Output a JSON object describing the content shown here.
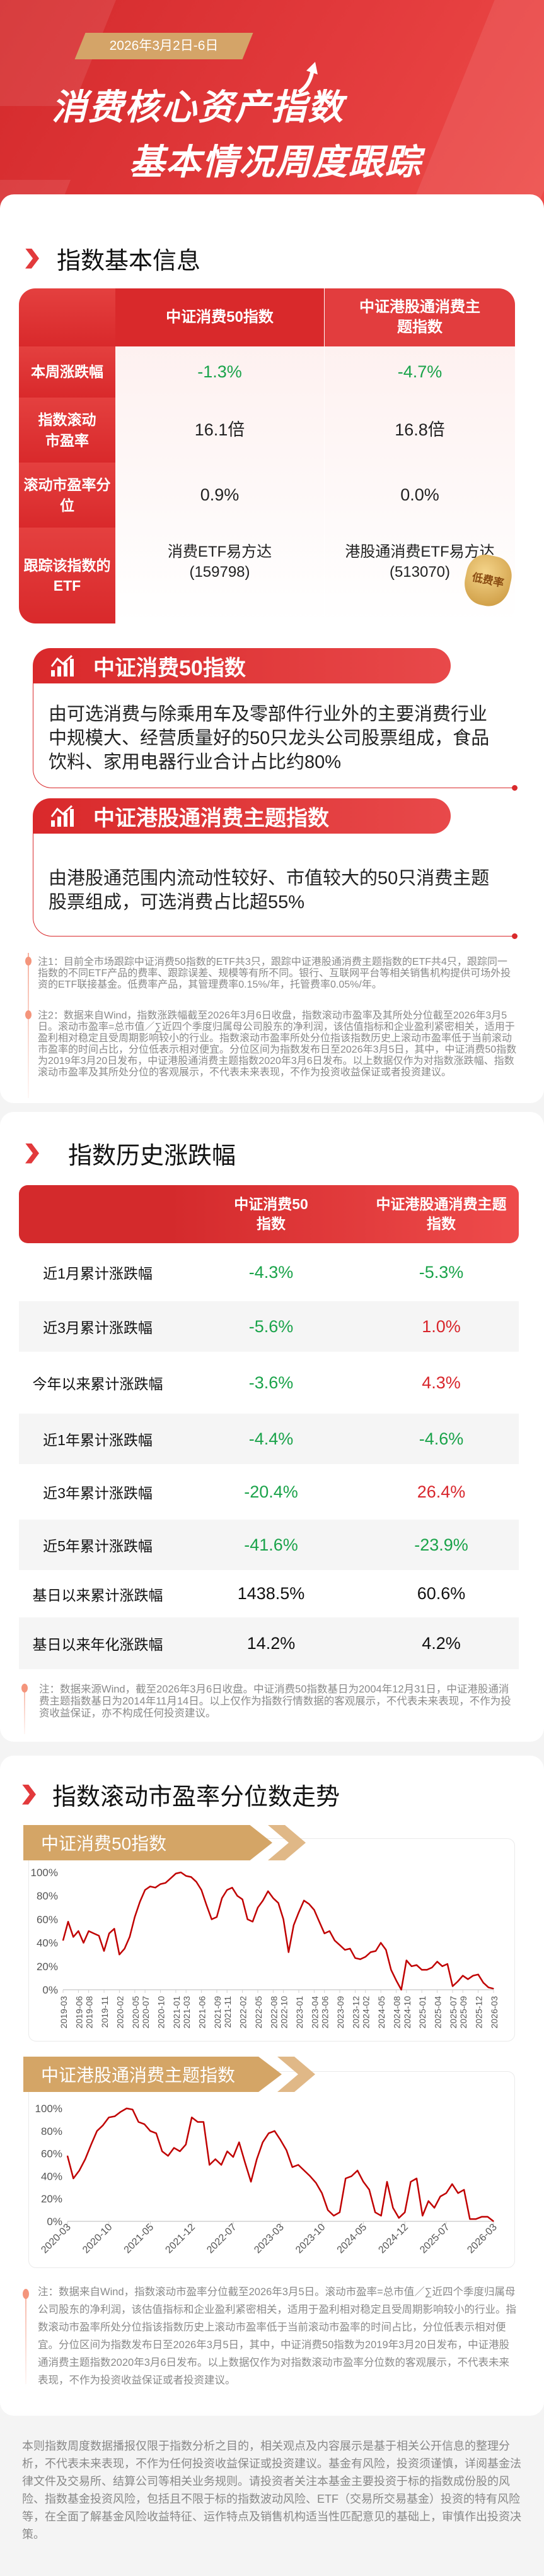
{
  "hero": {
    "date": "2026年3月2日-6日",
    "title_line1": "消费核心资产指数",
    "title_line2": "基本情况周度跟踪"
  },
  "basic_info": {
    "heading": "指数基本信息",
    "columns": [
      "中证消费50指数",
      "中证港股通消费主题指数"
    ],
    "rows": [
      {
        "label": "本周涨跌幅",
        "values": [
          "-1.3%",
          "-4.7%"
        ],
        "colors": [
          "#1aa34a",
          "#1aa34a"
        ]
      },
      {
        "label": "指数滚动市盈率",
        "values": [
          "16.1倍",
          "16.8倍"
        ]
      },
      {
        "label": "滚动市盈率分位",
        "values": [
          "0.9%",
          "0.0%"
        ]
      },
      {
        "label": "跟踪该指数的ETF",
        "values": [
          "消费ETF易方达\n(159798)",
          "港股通消费ETF易方达\n(513070)"
        ]
      }
    ],
    "badge": "低费率",
    "index_intros": [
      {
        "title": "中证消费50指数",
        "icon": "chart-growth-icon",
        "text": "由可选消费与除乘用车及零部件行业外的主要消费行业中规模大、经营质量好的50只龙头公司股票组成，食品饮料、家用电器行业合计占比约80%"
      },
      {
        "title": "中证港股通消费主题指数",
        "icon": "chart-growth-icon",
        "text": "由港股通范围内流动性较好、市值较大的50只消费主题股票组成，可选消费占比超55%"
      }
    ],
    "notes": [
      "注1：目前全市场跟踪中证消费50指数的ETF共3只，跟踪中证港股通消费主题指数的ETF共4只，跟踪同一指数的不同ETF产品的费率、跟踪误差、规模等有所不同。银行、互联网平台等相关销售机构提供可场外投资的ETF联接基金。低费率产品，其管理费率0.15%/年，托管费率0.05%/年。",
      "注2：数据来自Wind，指数涨跌幅截至2026年3月6日收盘，指数滚动市盈率及其所处分位截至2026年3月5日。滚动市盈率=总市值／∑近四个季度归属母公司股东的净利润，该估值指标和企业盈利紧密相关，适用于盈利相对稳定且受周期影响较小的行业。指数滚动市盈率所处分位指该指数历史上滚动市盈率低于当前滚动市盈率的时间占比，分位低表示相对便宜。分位区间为指数发布日至2026年3月5日，其中，中证消费50指数为2019年3月20日发布，中证港股通消费主题指数2020年3月6日发布。以上数据仅作为对指数涨跌幅、指数滚动市盈率及其所处分位的客观展示，不代表未来表现，不作为投资收益保证或者投资建议。"
    ]
  },
  "history": {
    "heading": "指数历史涨跌幅",
    "columns": [
      "中证消费50\n指数",
      "中证港股通消费主题\n指数"
    ],
    "rows": [
      {
        "label": "近1月累计涨跌幅",
        "values": [
          "-4.3%",
          "-5.3%"
        ],
        "colors": [
          "#1aa34a",
          "#1aa34a"
        ]
      },
      {
        "label": "近3月累计涨跌幅",
        "values": [
          "-5.6%",
          "1.0%"
        ],
        "colors": [
          "#1aa34a",
          "#d8262c"
        ]
      },
      {
        "label": "今年以来累计涨跌幅",
        "values": [
          "-3.6%",
          "4.3%"
        ],
        "colors": [
          "#1aa34a",
          "#d8262c"
        ]
      },
      {
        "label": "近1年累计涨跌幅",
        "values": [
          "-4.4%",
          "-4.6%"
        ],
        "colors": [
          "#1aa34a",
          "#1aa34a"
        ]
      },
      {
        "label": "近3年累计涨跌幅",
        "values": [
          "-20.4%",
          "26.4%"
        ],
        "colors": [
          "#1aa34a",
          "#d8262c"
        ]
      },
      {
        "label": "近5年累计涨跌幅",
        "values": [
          "-41.6%",
          "-23.9%"
        ],
        "colors": [
          "#1aa34a",
          "#1aa34a"
        ]
      },
      {
        "label": "基日以来累计涨跌幅",
        "values": [
          "1438.5%",
          "60.6%"
        ],
        "colors": [
          "#111111",
          "#111111"
        ]
      },
      {
        "label": "基日以来年化涨跌幅",
        "values": [
          "14.2%",
          "4.2%"
        ],
        "colors": [
          "#111111",
          "#111111"
        ]
      }
    ],
    "note": "注：数据来源Wind，截至2026年3月6日收盘。中证消费50指数基日为2004年12月31日，中证港股通消费主题指数基日为2014年11月14日。以上仅作为指数行情数据的客观展示，不代表未来表现，不作为投资收益保证，亦不构成任何投资建议。"
  },
  "pe_trend": {
    "heading": "指数滚动市盈率分位数走势",
    "note": "注：数据来自Wind，指数滚动市盈率分位截至2026年3月5日。滚动市盈率=总市值／∑近四个季度归属母公司股东的净利润，该估值指标和企业盈利紧密相关，适用于盈利相对稳定且受周期影响较小的行业。指数滚动市盈率所处分位指该指数历史上滚动市盈率低于当前滚动市盈率的时间占比，分位低表示相对便宜。分位区间为指数发布日至2026年3月5日，其中，中证消费50指数为2019年3月20日发布，中证港股通消费主题指数2020年3月6日发布。以上数据仅作为对指数滚动市盈率分位数的客观展示，不代表未来表现，不作为投资收益保证或者投资建议。"
  },
  "chart_data": [
    {
      "type": "line",
      "title": "中证消费50指数",
      "color": "#c00000",
      "ylim": [
        0,
        100
      ],
      "y_ticks": [
        "0%",
        "20%",
        "40%",
        "60%",
        "80%",
        "100%"
      ],
      "x_ticks": [
        "2019-03",
        "2019-06",
        "2019-08",
        "2019-11",
        "2020-02",
        "2020-05",
        "2020-07",
        "2020-10",
        "2021-01",
        "2021-03",
        "2021-06",
        "2021-09",
        "2021-11",
        "2022-02",
        "2022-05",
        "2022-08",
        "2022-10",
        "2023-01",
        "2023-04",
        "2023-06",
        "2023-09",
        "2023-12",
        "2024-02",
        "2024-05",
        "2024-08",
        "2024-10",
        "2025-01",
        "2025-04",
        "2025-07",
        "2025-09",
        "2025-12",
        "2026-03"
      ],
      "x_range": [
        "2019-03",
        "2026-03"
      ],
      "grid": false,
      "x": [
        "2019-03",
        "2019-04",
        "2019-05",
        "2019-06",
        "2019-07",
        "2019-08",
        "2019-09",
        "2019-10",
        "2019-11",
        "2019-12",
        "2020-01",
        "2020-02",
        "2020-03",
        "2020-04",
        "2020-05",
        "2020-06",
        "2020-07",
        "2020-08",
        "2020-09",
        "2020-10",
        "2020-11",
        "2020-12",
        "2021-01",
        "2021-02",
        "2021-03",
        "2021-04",
        "2021-05",
        "2021-06",
        "2021-07",
        "2021-08",
        "2021-09",
        "2021-10",
        "2021-11",
        "2021-12",
        "2022-01",
        "2022-02",
        "2022-03",
        "2022-04",
        "2022-05",
        "2022-06",
        "2022-07",
        "2022-08",
        "2022-09",
        "2022-10",
        "2022-11",
        "2022-12",
        "2023-01",
        "2023-02",
        "2023-03",
        "2023-04",
        "2023-05",
        "2023-06",
        "2023-07",
        "2023-08",
        "2023-09",
        "2023-10",
        "2023-11",
        "2023-12",
        "2024-01",
        "2024-02",
        "2024-03",
        "2024-04",
        "2024-05",
        "2024-06",
        "2024-07",
        "2024-08",
        "2024-09",
        "2024-10",
        "2024-11",
        "2024-12",
        "2025-01",
        "2025-02",
        "2025-03",
        "2025-04",
        "2025-05",
        "2025-06",
        "2025-07",
        "2025-08",
        "2025-09",
        "2025-10",
        "2025-11",
        "2025-12",
        "2026-01",
        "2026-02",
        "2026-03"
      ],
      "y": [
        42,
        58,
        45,
        50,
        40,
        50,
        48,
        46,
        33,
        48,
        52,
        30,
        35,
        45,
        62,
        75,
        85,
        88,
        87,
        90,
        91,
        95,
        99,
        100,
        97,
        96,
        92,
        85,
        72,
        60,
        62,
        78,
        85,
        87,
        80,
        77,
        60,
        58,
        70,
        76,
        84,
        78,
        74,
        60,
        32,
        55,
        66,
        76,
        73,
        68,
        58,
        48,
        50,
        42,
        38,
        34,
        35,
        27,
        26,
        28,
        32,
        33,
        40,
        34,
        17,
        8,
        0,
        25,
        20,
        21,
        17,
        17,
        19,
        24,
        20,
        22,
        3,
        7,
        12,
        9,
        12,
        13,
        6,
        2,
        0.9
      ]
    },
    {
      "type": "line",
      "title": "中证港股通消费主题指数",
      "color": "#c00000",
      "ylim": [
        0,
        100
      ],
      "y_ticks": [
        "0%",
        "20%",
        "40%",
        "60%",
        "80%",
        "100%"
      ],
      "x_ticks": [
        "2020-03",
        "2020-10",
        "2021-05",
        "2021-12",
        "2022-07",
        "2023-03",
        "2023-10",
        "2024-05",
        "2024-12",
        "2025-07",
        "2026-03"
      ],
      "x_range": [
        "2020-03",
        "2026-03"
      ],
      "grid": false,
      "x": [
        "2020-03",
        "2020-04",
        "2020-05",
        "2020-06",
        "2020-07",
        "2020-08",
        "2020-09",
        "2020-10",
        "2020-11",
        "2020-12",
        "2021-01",
        "2021-02",
        "2021-03",
        "2021-04",
        "2021-05",
        "2021-06",
        "2021-07",
        "2021-08",
        "2021-09",
        "2021-10",
        "2021-11",
        "2021-12",
        "2022-01",
        "2022-02",
        "2022-03",
        "2022-04",
        "2022-05",
        "2022-06",
        "2022-07",
        "2022-08",
        "2022-09",
        "2022-10",
        "2022-11",
        "2022-12",
        "2023-01",
        "2023-02",
        "2023-03",
        "2023-04",
        "2023-05",
        "2023-06",
        "2023-07",
        "2023-08",
        "2023-09",
        "2023-10",
        "2023-11",
        "2023-12",
        "2024-01",
        "2024-02",
        "2024-03",
        "2024-04",
        "2024-05",
        "2024-06",
        "2024-07",
        "2024-08",
        "2024-09",
        "2024-10",
        "2024-11",
        "2024-12",
        "2025-01",
        "2025-02",
        "2025-03",
        "2025-04",
        "2025-05",
        "2025-06",
        "2025-07",
        "2025-08",
        "2025-09",
        "2025-10",
        "2025-11",
        "2025-12",
        "2026-01",
        "2026-02",
        "2026-03"
      ],
      "y": [
        58,
        38,
        45,
        55,
        68,
        80,
        85,
        92,
        93,
        97,
        100,
        99,
        88,
        86,
        80,
        78,
        62,
        58,
        65,
        62,
        68,
        92,
        88,
        88,
        50,
        55,
        50,
        62,
        57,
        70,
        52,
        35,
        55,
        70,
        78,
        80,
        72,
        63,
        48,
        50,
        45,
        40,
        34,
        25,
        10,
        5,
        8,
        38,
        40,
        45,
        35,
        28,
        8,
        5,
        35,
        12,
        3,
        8,
        35,
        38,
        5,
        18,
        12,
        22,
        25,
        33,
        25,
        28,
        2,
        2,
        4,
        4,
        0
      ]
    }
  ],
  "footer": "本则指数周度数据播报仅限于指数分析之目的，相关观点及内容展示是基于相关公开信息的整理分析，不代表未来表现，不作为任何投资收益保证或投资建议。基金有风险，投资须谨慎，详阅基金法律文件及交易所、结算公司等相关业务规则。请投资者关注本基金主要投资于标的指数成份股的风险、指数基金投资风险，包括且不限于标的指数波动风险、ETF（交易所交易基金）投资的特有风险等，在全面了解基金风险收益特征、运作特点及销售机构适当性匹配意见的基础上，审慎作出投资决策。"
}
